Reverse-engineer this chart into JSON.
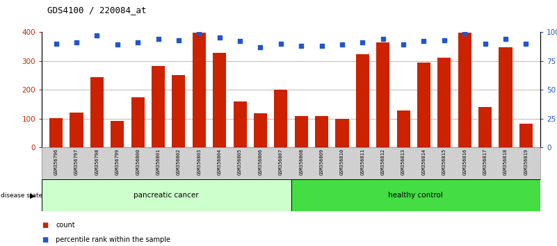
{
  "title": "GDS4100 / 220084_at",
  "samples": [
    "GSM356796",
    "GSM356797",
    "GSM356798",
    "GSM356799",
    "GSM356800",
    "GSM356801",
    "GSM356802",
    "GSM356803",
    "GSM356804",
    "GSM356805",
    "GSM356806",
    "GSM356807",
    "GSM356808",
    "GSM356809",
    "GSM356810",
    "GSM356811",
    "GSM356812",
    "GSM356813",
    "GSM356814",
    "GSM356815",
    "GSM356816",
    "GSM356817",
    "GSM356818",
    "GSM356819"
  ],
  "counts": [
    103,
    122,
    243,
    93,
    175,
    283,
    252,
    398,
    328,
    160,
    118,
    200,
    110,
    110,
    100,
    322,
    363,
    128,
    295,
    310,
    398,
    140,
    348,
    83
  ],
  "percentile_ranks": [
    90,
    91,
    97,
    89,
    91,
    94,
    93,
    99,
    95,
    92,
    87,
    90,
    88,
    88,
    89,
    91,
    94,
    89,
    92,
    93,
    99,
    90,
    94,
    90
  ],
  "bar_color": "#cc2200",
  "dot_color": "#2255cc",
  "pancreatic_color": "#ccffcc",
  "healthy_color": "#44dd44",
  "ylim_left": [
    0,
    400
  ],
  "yticks_left": [
    0,
    100,
    200,
    300,
    400
  ],
  "yticks_right": [
    0,
    25,
    50,
    75,
    100
  ],
  "ytick_labels_right": [
    "0",
    "25",
    "50",
    "75",
    "100%"
  ],
  "grid_color": "black",
  "n_pancreatic": 12,
  "n_healthy": 12
}
